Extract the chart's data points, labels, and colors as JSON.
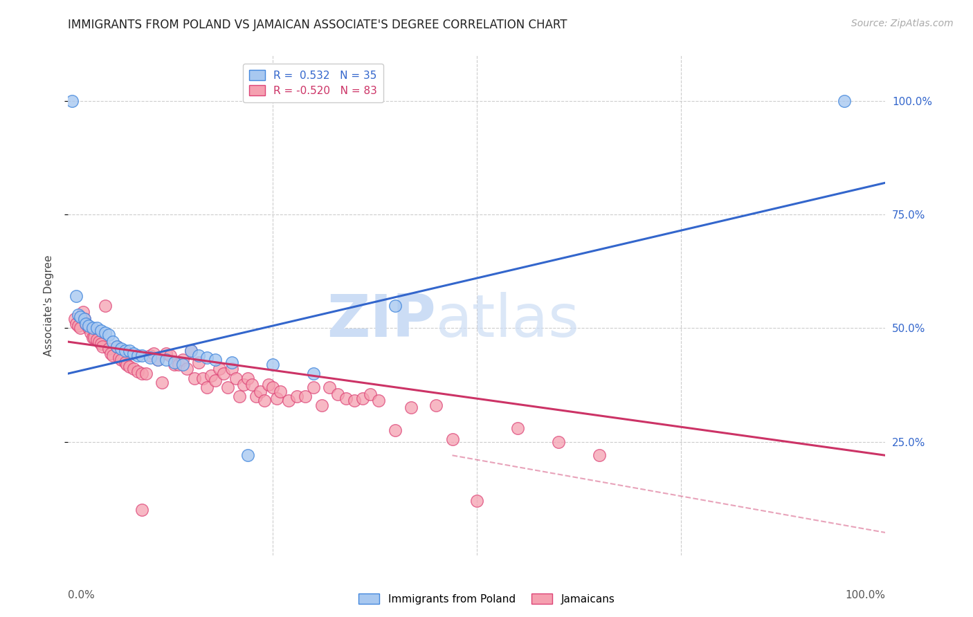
{
  "title": "IMMIGRANTS FROM POLAND VS JAMAICAN ASSOCIATE'S DEGREE CORRELATION CHART",
  "source": "Source: ZipAtlas.com",
  "ylabel": "Associate's Degree",
  "watermark_zip": "ZIP",
  "watermark_atlas": "atlas",
  "r_blue": 0.532,
  "n_blue": 35,
  "r_pink": -0.52,
  "n_pink": 83,
  "blue_scatter": [
    [
      0.5,
      100.0
    ],
    [
      1.0,
      57.0
    ],
    [
      1.2,
      53.0
    ],
    [
      1.5,
      52.5
    ],
    [
      2.0,
      52.0
    ],
    [
      2.2,
      51.0
    ],
    [
      2.5,
      50.5
    ],
    [
      3.0,
      50.0
    ],
    [
      3.5,
      50.0
    ],
    [
      4.0,
      49.5
    ],
    [
      4.5,
      49.0
    ],
    [
      5.0,
      48.5
    ],
    [
      5.5,
      47.0
    ],
    [
      6.0,
      46.0
    ],
    [
      6.5,
      45.5
    ],
    [
      7.0,
      45.0
    ],
    [
      7.5,
      45.0
    ],
    [
      8.0,
      44.5
    ],
    [
      8.5,
      44.0
    ],
    [
      9.0,
      44.0
    ],
    [
      10.0,
      43.5
    ],
    [
      11.0,
      43.0
    ],
    [
      12.0,
      43.0
    ],
    [
      13.0,
      42.5
    ],
    [
      14.0,
      42.0
    ],
    [
      15.0,
      45.0
    ],
    [
      16.0,
      44.0
    ],
    [
      17.0,
      43.5
    ],
    [
      18.0,
      43.0
    ],
    [
      20.0,
      42.5
    ],
    [
      22.0,
      22.0
    ],
    [
      25.0,
      42.0
    ],
    [
      30.0,
      40.0
    ],
    [
      40.0,
      55.0
    ],
    [
      95.0,
      100.0
    ]
  ],
  "pink_scatter": [
    [
      0.8,
      52.0
    ],
    [
      1.0,
      51.0
    ],
    [
      1.2,
      50.5
    ],
    [
      1.5,
      50.0
    ],
    [
      1.8,
      53.5
    ],
    [
      2.0,
      52.0
    ],
    [
      2.2,
      51.0
    ],
    [
      2.5,
      50.0
    ],
    [
      2.8,
      49.0
    ],
    [
      3.0,
      48.0
    ],
    [
      3.2,
      48.0
    ],
    [
      3.5,
      47.5
    ],
    [
      3.8,
      47.0
    ],
    [
      4.0,
      46.5
    ],
    [
      4.2,
      46.0
    ],
    [
      4.5,
      55.0
    ],
    [
      5.0,
      45.5
    ],
    [
      5.2,
      44.5
    ],
    [
      5.5,
      44.0
    ],
    [
      6.0,
      46.0
    ],
    [
      6.2,
      43.5
    ],
    [
      6.5,
      43.0
    ],
    [
      7.0,
      42.5
    ],
    [
      7.2,
      42.0
    ],
    [
      7.5,
      41.5
    ],
    [
      8.0,
      41.0
    ],
    [
      8.5,
      40.5
    ],
    [
      9.0,
      40.0
    ],
    [
      9.5,
      40.0
    ],
    [
      10.0,
      44.0
    ],
    [
      10.5,
      44.5
    ],
    [
      11.0,
      43.0
    ],
    [
      11.5,
      38.0
    ],
    [
      12.0,
      44.5
    ],
    [
      12.5,
      44.0
    ],
    [
      13.0,
      42.0
    ],
    [
      13.5,
      42.0
    ],
    [
      14.0,
      43.0
    ],
    [
      14.5,
      41.0
    ],
    [
      15.0,
      45.0
    ],
    [
      15.5,
      39.0
    ],
    [
      16.0,
      42.5
    ],
    [
      16.5,
      39.0
    ],
    [
      17.0,
      37.0
    ],
    [
      17.5,
      39.5
    ],
    [
      18.0,
      38.5
    ],
    [
      18.5,
      41.0
    ],
    [
      19.0,
      40.0
    ],
    [
      19.5,
      37.0
    ],
    [
      20.0,
      41.0
    ],
    [
      20.5,
      39.0
    ],
    [
      21.0,
      35.0
    ],
    [
      21.5,
      37.5
    ],
    [
      22.0,
      39.0
    ],
    [
      22.5,
      37.5
    ],
    [
      23.0,
      35.0
    ],
    [
      23.5,
      36.0
    ],
    [
      24.0,
      34.0
    ],
    [
      24.5,
      37.5
    ],
    [
      25.0,
      37.0
    ],
    [
      25.5,
      34.5
    ],
    [
      26.0,
      36.0
    ],
    [
      27.0,
      34.0
    ],
    [
      28.0,
      35.0
    ],
    [
      29.0,
      35.0
    ],
    [
      30.0,
      37.0
    ],
    [
      31.0,
      33.0
    ],
    [
      32.0,
      37.0
    ],
    [
      33.0,
      35.5
    ],
    [
      34.0,
      34.5
    ],
    [
      35.0,
      34.0
    ],
    [
      36.0,
      34.5
    ],
    [
      37.0,
      35.5
    ],
    [
      38.0,
      34.0
    ],
    [
      40.0,
      27.5
    ],
    [
      42.0,
      32.5
    ],
    [
      45.0,
      33.0
    ],
    [
      47.0,
      25.5
    ],
    [
      50.0,
      12.0
    ],
    [
      55.0,
      28.0
    ],
    [
      60.0,
      25.0
    ],
    [
      65.0,
      22.0
    ],
    [
      9.0,
      10.0
    ]
  ],
  "blue_line": [
    [
      0,
      100
    ],
    [
      40.0,
      82.0
    ]
  ],
  "pink_line_solid": [
    [
      0,
      100
    ],
    [
      47.0,
      22.0
    ]
  ],
  "pink_line_dashed": [
    [
      47.0,
      100
    ],
    [
      22.0,
      5.0
    ]
  ],
  "ylim": [
    0,
    110
  ],
  "xlim": [
    0,
    100
  ],
  "ytick_positions": [
    25,
    50,
    75,
    100
  ],
  "ytick_labels": [
    "25.0%",
    "50.0%",
    "75.0%",
    "100.0%"
  ],
  "blue_color": "#a8c8f0",
  "blue_edge_color": "#4488dd",
  "pink_color": "#f5a0b0",
  "pink_edge_color": "#dd4477",
  "blue_line_color": "#3366cc",
  "pink_line_color": "#cc3366",
  "grid_color": "#cccccc",
  "bg_color": "#ffffff",
  "watermark_color": "#ccddf5",
  "title_fontsize": 12,
  "axis_label_fontsize": 11,
  "tick_fontsize": 11,
  "legend_fontsize": 11,
  "source_fontsize": 10
}
